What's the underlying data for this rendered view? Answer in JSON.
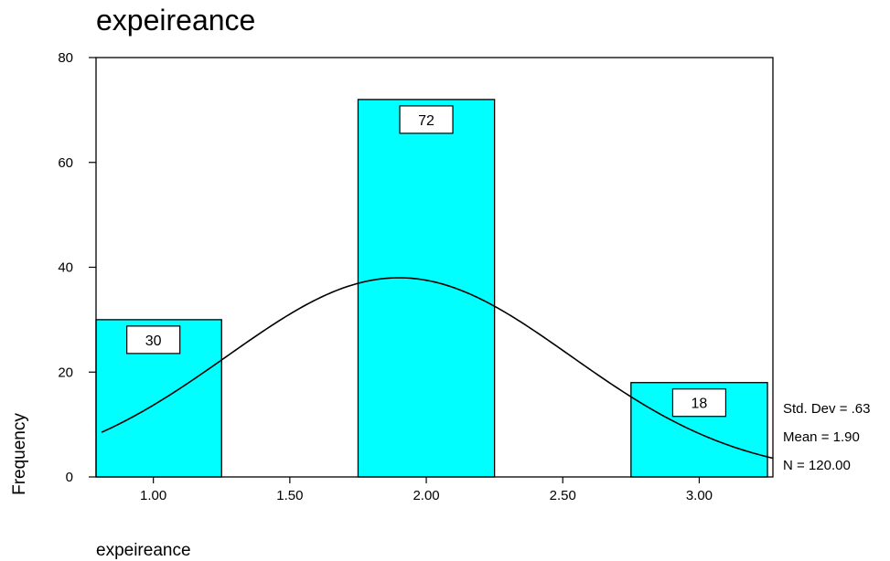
{
  "chart_data": {
    "type": "bar",
    "title": "expeireance",
    "xlabel": "expeireance",
    "ylabel": "Frequency",
    "categories": [
      "1.00",
      "2.00",
      "3.00"
    ],
    "x": [
      1.0,
      2.0,
      3.0
    ],
    "values": [
      30,
      72,
      18
    ],
    "data_labels": [
      "30",
      "72",
      "18"
    ],
    "bin_width": 0.5,
    "xlim": [
      0.79,
      3.27
    ],
    "ylim": [
      0,
      80
    ],
    "x_ticks": [
      1.0,
      1.5,
      2.0,
      2.5,
      3.0
    ],
    "x_tick_labels": [
      "1.00",
      "1.50",
      "2.00",
      "2.50",
      "3.00"
    ],
    "y_ticks": [
      0,
      20,
      40,
      60,
      80
    ],
    "y_tick_labels": [
      "0",
      "20",
      "40",
      "60",
      "80"
    ],
    "bar_color": "#00FFFF",
    "grid": false,
    "normal_curve": {
      "mean": 1.9,
      "std": 0.63,
      "n": 120
    },
    "stats": [
      "Std. Dev = .63",
      "Mean = 1.90",
      "N = 120.00"
    ]
  }
}
